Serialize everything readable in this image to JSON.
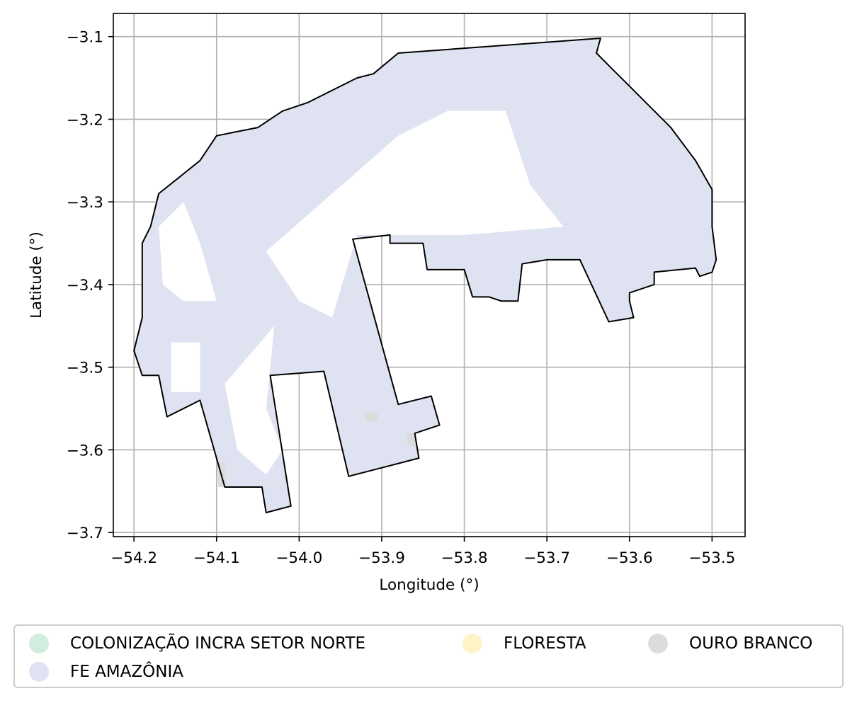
{
  "chart_data": {
    "type": "map",
    "xlabel": "Longitude (°)",
    "ylabel": "Latitude (°)",
    "xlim": [
      -54.225,
      -53.46
    ],
    "ylim": [
      -3.705,
      -3.072
    ],
    "x_ticks": [
      -54.2,
      -54.1,
      -54.0,
      -53.9,
      -53.8,
      -53.7,
      -53.6,
      -53.5
    ],
    "x_tick_labels": [
      "−54.2",
      "−54.1",
      "−54.0",
      "−53.9",
      "−53.8",
      "−53.7",
      "−53.6",
      "−53.5"
    ],
    "y_ticks": [
      -3.1,
      -3.2,
      -3.3,
      -3.4,
      -3.5,
      -3.6,
      -3.7
    ],
    "y_tick_labels": [
      "−3.1",
      "−3.2",
      "−3.3",
      "−3.4",
      "−3.5",
      "−3.6",
      "−3.7"
    ],
    "grid": true,
    "legend_position": "bottom",
    "legend": [
      {
        "label": "COLONIZAÇÃO INCRA SETOR NORTE",
        "color": "#d2eddf"
      },
      {
        "label": "FLORESTA",
        "color": "#fdf3c5"
      },
      {
        "label": "OURO BRANCO",
        "color": "#dcdcdc"
      },
      {
        "label": "FE AMAZÔNIA",
        "color": "#dfe3f1"
      }
    ],
    "boundary_lonlat": [
      [
        -54.17,
        -3.51
      ],
      [
        -54.19,
        -3.51
      ],
      [
        -54.2,
        -3.48
      ],
      [
        -54.19,
        -3.44
      ],
      [
        -54.19,
        -3.35
      ],
      [
        -54.18,
        -3.33
      ],
      [
        -54.17,
        -3.29
      ],
      [
        -54.145,
        -3.27
      ],
      [
        -54.12,
        -3.25
      ],
      [
        -54.1,
        -3.22
      ],
      [
        -54.075,
        -3.215
      ],
      [
        -54.05,
        -3.21
      ],
      [
        -54.02,
        -3.19
      ],
      [
        -53.99,
        -3.18
      ],
      [
        -53.96,
        -3.165
      ],
      [
        -53.93,
        -3.15
      ],
      [
        -53.91,
        -3.145
      ],
      [
        -53.88,
        -3.12
      ],
      [
        -53.635,
        -3.102
      ],
      [
        -53.64,
        -3.12
      ],
      [
        -53.62,
        -3.14
      ],
      [
        -53.6,
        -3.16
      ],
      [
        -53.58,
        -3.18
      ],
      [
        -53.55,
        -3.21
      ],
      [
        -53.52,
        -3.25
      ],
      [
        -53.5,
        -3.285
      ],
      [
        -53.5,
        -3.33
      ],
      [
        -53.495,
        -3.37
      ],
      [
        -53.5,
        -3.385
      ],
      [
        -53.515,
        -3.39
      ],
      [
        -53.52,
        -3.38
      ],
      [
        -53.57,
        -3.385
      ],
      [
        -53.57,
        -3.4
      ],
      [
        -53.6,
        -3.41
      ],
      [
        -53.6,
        -3.42
      ],
      [
        -53.595,
        -3.44
      ],
      [
        -53.625,
        -3.445
      ],
      [
        -53.66,
        -3.37
      ],
      [
        -53.7,
        -3.37
      ],
      [
        -53.73,
        -3.375
      ],
      [
        -53.735,
        -3.42
      ],
      [
        -53.755,
        -3.42
      ],
      [
        -53.77,
        -3.415
      ],
      [
        -53.79,
        -3.415
      ],
      [
        -53.8,
        -3.382
      ],
      [
        -53.845,
        -3.382
      ],
      [
        -53.85,
        -3.35
      ],
      [
        -53.89,
        -3.35
      ],
      [
        -53.89,
        -3.34
      ],
      [
        -53.935,
        -3.345
      ],
      [
        -53.88,
        -3.545
      ],
      [
        -53.84,
        -3.535
      ],
      [
        -53.83,
        -3.57
      ],
      [
        -53.86,
        -3.58
      ],
      [
        -53.855,
        -3.61
      ],
      [
        -53.94,
        -3.632
      ],
      [
        -53.97,
        -3.505
      ],
      [
        -54.035,
        -3.51
      ],
      [
        -54.01,
        -3.668
      ],
      [
        -54.04,
        -3.676
      ],
      [
        -54.045,
        -3.645
      ],
      [
        -54.09,
        -3.645
      ],
      [
        -54.12,
        -3.54
      ],
      [
        -54.16,
        -3.56
      ],
      [
        -54.17,
        -3.51
      ]
    ],
    "fe_amazonia_region_lonlat": [
      [
        -54.17,
        -3.51
      ],
      [
        -54.19,
        -3.51
      ],
      [
        -54.2,
        -3.48
      ],
      [
        -54.19,
        -3.44
      ],
      [
        -54.19,
        -3.35
      ],
      [
        -54.18,
        -3.33
      ],
      [
        -54.17,
        -3.29
      ],
      [
        -54.145,
        -3.27
      ],
      [
        -54.12,
        -3.25
      ],
      [
        -54.1,
        -3.22
      ],
      [
        -54.075,
        -3.215
      ],
      [
        -54.05,
        -3.21
      ],
      [
        -54.02,
        -3.19
      ],
      [
        -53.99,
        -3.18
      ],
      [
        -53.96,
        -3.165
      ],
      [
        -53.93,
        -3.15
      ],
      [
        -53.91,
        -3.145
      ],
      [
        -53.88,
        -3.12
      ],
      [
        -53.635,
        -3.102
      ],
      [
        -53.64,
        -3.12
      ],
      [
        -53.62,
        -3.14
      ],
      [
        -53.6,
        -3.16
      ],
      [
        -53.58,
        -3.18
      ],
      [
        -53.55,
        -3.21
      ],
      [
        -53.52,
        -3.25
      ],
      [
        -53.5,
        -3.285
      ],
      [
        -53.5,
        -3.33
      ],
      [
        -53.495,
        -3.37
      ],
      [
        -53.5,
        -3.385
      ],
      [
        -53.515,
        -3.39
      ],
      [
        -53.52,
        -3.38
      ],
      [
        -53.57,
        -3.385
      ],
      [
        -53.57,
        -3.4
      ],
      [
        -53.6,
        -3.41
      ],
      [
        -53.6,
        -3.42
      ],
      [
        -53.595,
        -3.44
      ],
      [
        -53.625,
        -3.445
      ],
      [
        -53.66,
        -3.37
      ],
      [
        -53.7,
        -3.37
      ],
      [
        -53.73,
        -3.375
      ],
      [
        -53.735,
        -3.42
      ],
      [
        -53.755,
        -3.42
      ],
      [
        -53.77,
        -3.415
      ],
      [
        -53.79,
        -3.415
      ],
      [
        -53.8,
        -3.382
      ],
      [
        -53.845,
        -3.382
      ],
      [
        -53.85,
        -3.35
      ],
      [
        -53.89,
        -3.35
      ],
      [
        -53.89,
        -3.34
      ],
      [
        -53.935,
        -3.345
      ],
      [
        -53.88,
        -3.545
      ],
      [
        -53.84,
        -3.535
      ],
      [
        -53.83,
        -3.57
      ],
      [
        -53.86,
        -3.58
      ],
      [
        -53.855,
        -3.61
      ],
      [
        -53.94,
        -3.632
      ],
      [
        -53.97,
        -3.505
      ],
      [
        -54.035,
        -3.51
      ],
      [
        -54.01,
        -3.668
      ],
      [
        -54.04,
        -3.676
      ],
      [
        -54.045,
        -3.645
      ],
      [
        -54.09,
        -3.645
      ],
      [
        -54.12,
        -3.54
      ],
      [
        -54.16,
        -3.56
      ],
      [
        -54.17,
        -3.51
      ]
    ],
    "unfilled_areas_lonlat": [
      [
        [
          -54.17,
          -3.33
        ],
        [
          -54.14,
          -3.3
        ],
        [
          -54.12,
          -3.35
        ],
        [
          -54.1,
          -3.42
        ],
        [
          -54.14,
          -3.42
        ],
        [
          -54.165,
          -3.4
        ]
      ],
      [
        [
          -54.04,
          -3.36
        ],
        [
          -53.88,
          -3.22
        ],
        [
          -53.82,
          -3.19
        ],
        [
          -53.75,
          -3.19
        ],
        [
          -53.72,
          -3.28
        ],
        [
          -53.68,
          -3.33
        ],
        [
          -53.8,
          -3.34
        ],
        [
          -53.93,
          -3.34
        ],
        [
          -53.96,
          -3.44
        ],
        [
          -54.0,
          -3.42
        ]
      ],
      [
        [
          -54.155,
          -3.47
        ],
        [
          -54.12,
          -3.47
        ],
        [
          -54.12,
          -3.53
        ],
        [
          -54.155,
          -3.53
        ]
      ],
      [
        [
          -54.03,
          -3.45
        ],
        [
          -54.04,
          -3.55
        ],
        [
          -54.02,
          -3.6
        ],
        [
          -54.04,
          -3.63
        ],
        [
          -54.075,
          -3.6
        ],
        [
          -54.09,
          -3.52
        ]
      ]
    ],
    "ouro_branco_patches_lonlat": [
      [
        [
          -54.1,
          -3.615
        ],
        [
          -54.09,
          -3.615
        ],
        [
          -54.088,
          -3.645
        ],
        [
          -54.098,
          -3.645
        ]
      ],
      [
        [
          -53.87,
          -3.58
        ],
        [
          -53.86,
          -3.58
        ],
        [
          -53.858,
          -3.595
        ],
        [
          -53.868,
          -3.595
        ]
      ],
      [
        [
          -53.92,
          -3.555
        ],
        [
          -53.905,
          -3.555
        ],
        [
          -53.905,
          -3.565
        ],
        [
          -53.92,
          -3.565
        ]
      ]
    ]
  }
}
